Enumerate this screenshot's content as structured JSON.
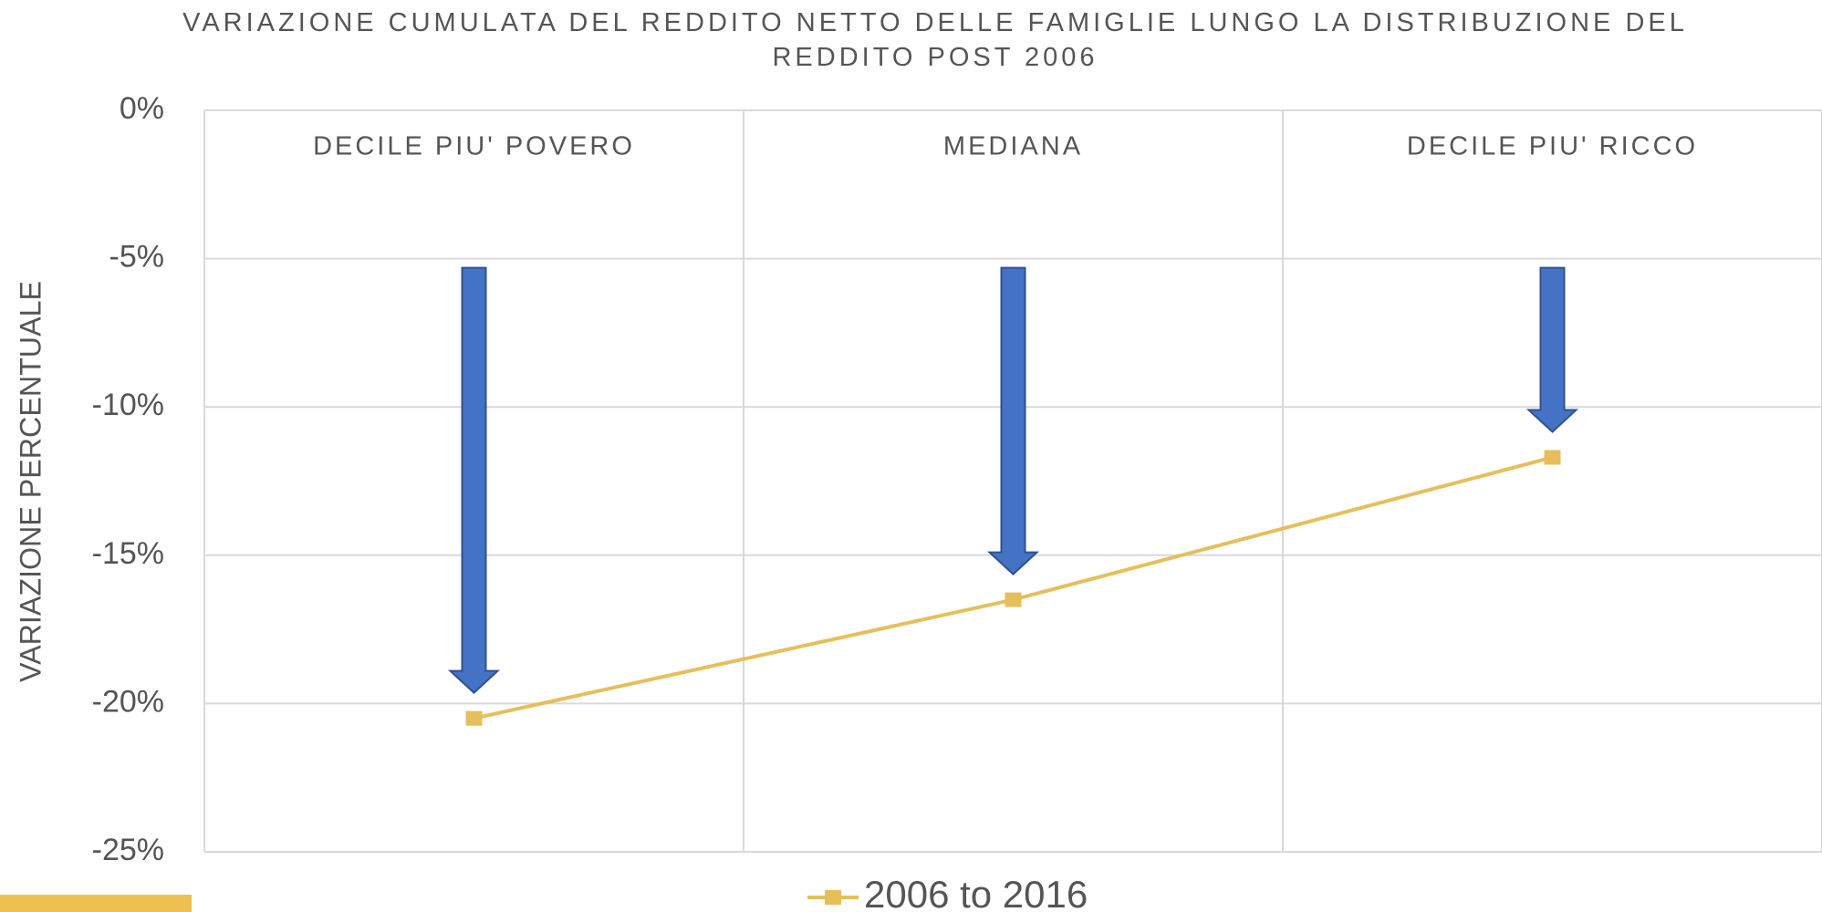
{
  "chart_data": {
    "type": "line",
    "title": "VARIAZIONE CUMULATA DEL REDDITO NETTO DELLE FAMIGLIE LUNGO LA DISTRIBUZIONE DEL REDDITO POST 2006",
    "y_label": "VARIAZIONE PERCENTUALE",
    "categories": [
      "DECILE PIU' POVERO",
      "MEDIANA",
      "DECILE PIU' RICCO"
    ],
    "series": [
      {
        "name": "2006 to 2016",
        "color": "#e6bf5c",
        "values": [
          -20.5,
          -16.5,
          -11.7
        ]
      }
    ],
    "ylim": [
      -25,
      0
    ],
    "yticks": [
      {
        "value": 0,
        "label": "0%"
      },
      {
        "value": -5,
        "label": "-5%"
      },
      {
        "value": -10,
        "label": "-10%"
      },
      {
        "value": -15,
        "label": "-15%"
      },
      {
        "value": -20,
        "label": "-20%"
      },
      {
        "value": -25,
        "label": "-25%"
      }
    ],
    "grid": true,
    "legend": "bottom"
  }
}
